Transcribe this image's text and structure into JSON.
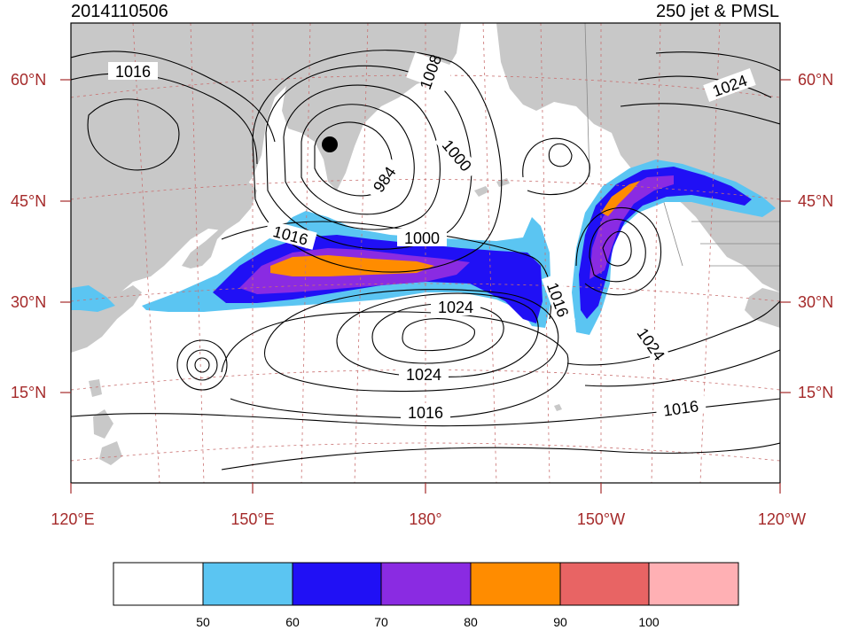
{
  "header": {
    "timestamp": "2014110506",
    "product": "250 jet & PMSL"
  },
  "axes": {
    "lat_left": [
      "60°N",
      "45°N",
      "30°N",
      "15°N"
    ],
    "lat_right": [
      "60°N",
      "45°N",
      "30°N",
      "15°N"
    ],
    "lon_bottom": [
      "120°E",
      "150°E",
      "180°",
      "150°W",
      "120°W"
    ]
  },
  "contour_labels": [
    "1016",
    "1008",
    "1024",
    "1000",
    "984",
    "1016",
    "1000",
    "1024",
    "1016",
    "1024",
    "1024",
    "1016",
    "1016"
  ],
  "colorbar": {
    "colors": [
      "#ffffff",
      "#5bc5f2",
      "#2010f5",
      "#8a2be2",
      "#ff8c00",
      "#e86464",
      "#ffb0b4"
    ],
    "ticks": [
      "50",
      "60",
      "70",
      "80",
      "90",
      "100"
    ]
  },
  "marker": {
    "type": "low-center-dot",
    "color": "#000000"
  }
}
